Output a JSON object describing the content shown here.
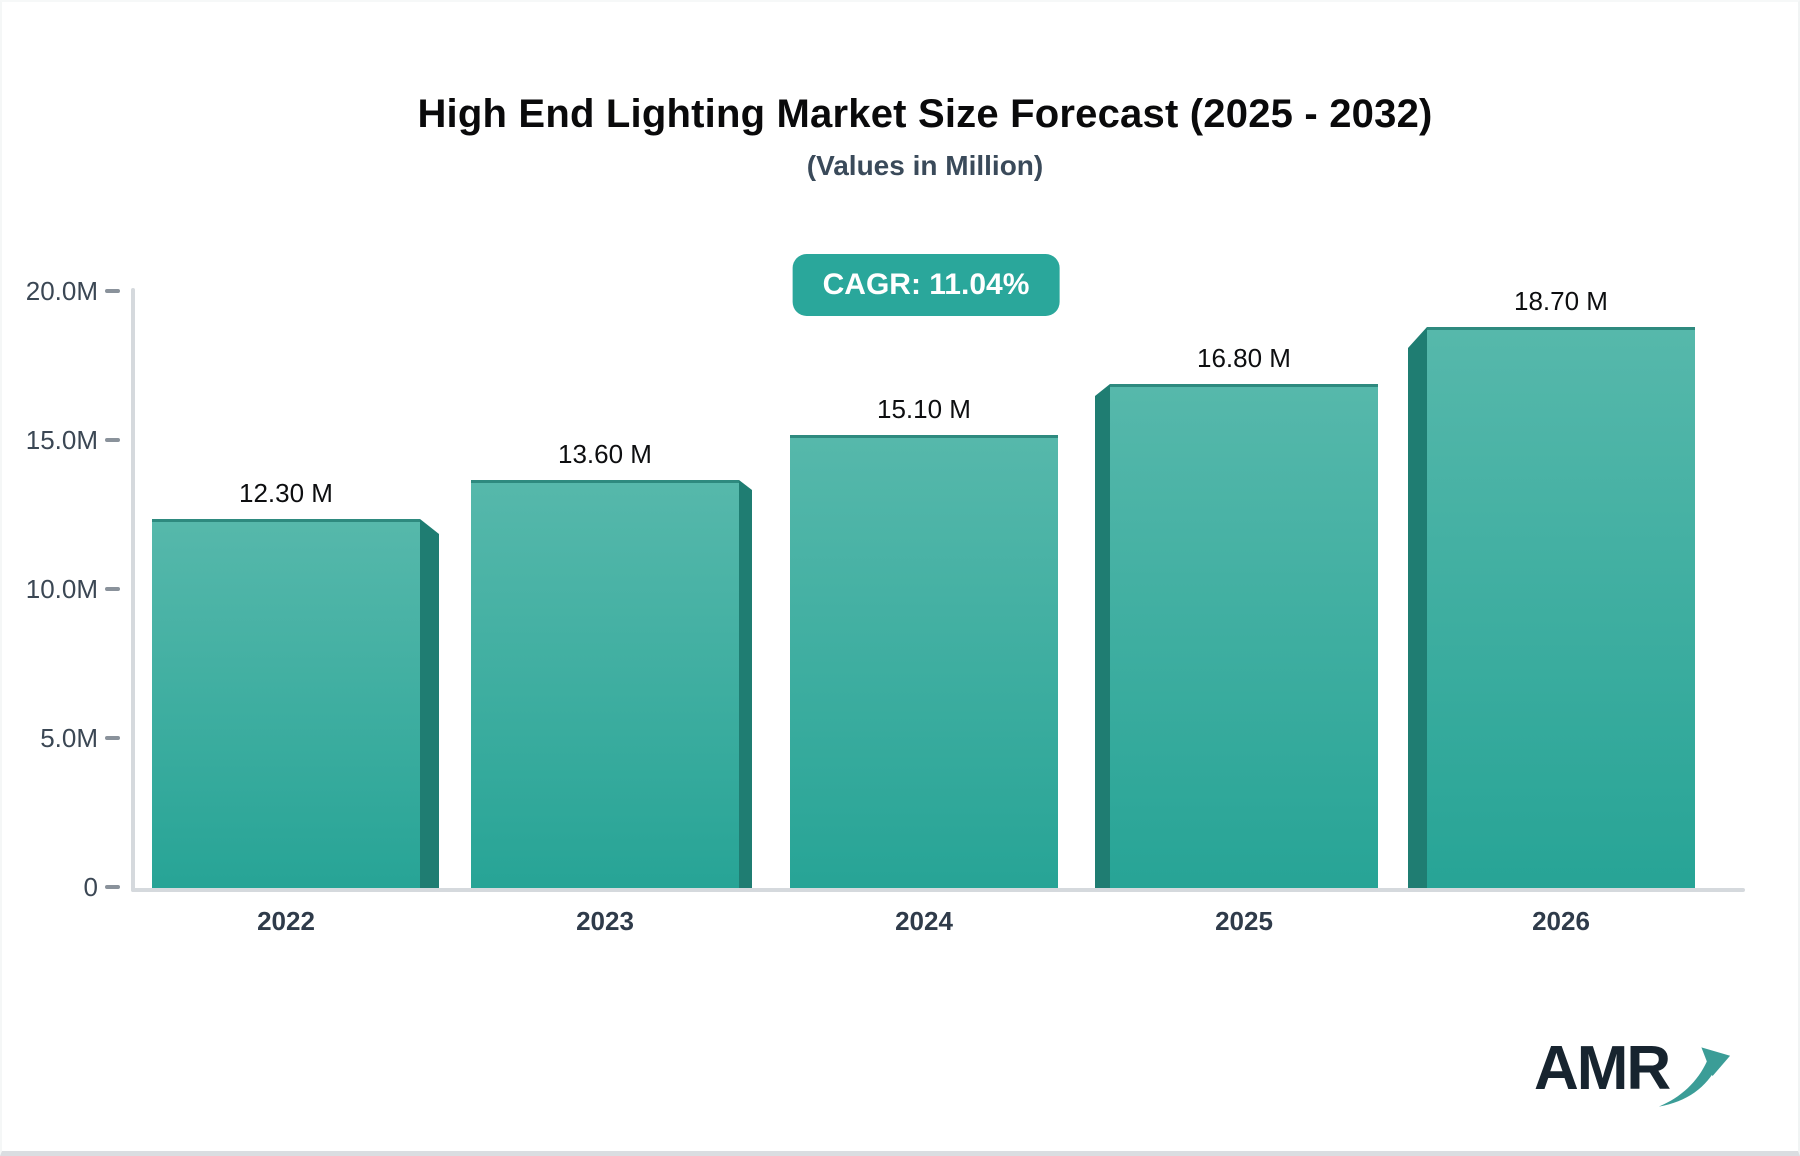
{
  "page": {
    "title": "High End Lighting Market Size Forecast (2025 - 2032)",
    "subtitle": "(Values in Million)",
    "cagr_badge": "CAGR: 11.04%"
  },
  "logo": {
    "text": "AMR",
    "arrow_icon": "growth-arrow-icon"
  },
  "chart_data": {
    "type": "bar",
    "title": "High End Lighting Market Size Forecast (2025 - 2032)",
    "subtitle": "(Values in Million)",
    "annotation": "CAGR: 11.04%",
    "categories": [
      "2022",
      "2023",
      "2024",
      "2025",
      "2026"
    ],
    "values": [
      12.3,
      13.6,
      15.1,
      16.8,
      18.7
    ],
    "value_labels": [
      "12.30 M",
      "13.60 M",
      "15.10 M",
      "16.80 M",
      "18.70 M"
    ],
    "unit": "Million",
    "y_ticks": [
      "0",
      "5.0M",
      "10.0M",
      "15.0M",
      "20.0M"
    ],
    "ylim": [
      0,
      20
    ],
    "grid": "off",
    "legend": "none",
    "bar_style": "3d-extruded-teal",
    "colors": {
      "bar_top": "#56B8AB",
      "bar_bottom": "#27A496",
      "bar_edge": "#2E8A7F",
      "bar_side": "#1F7D72",
      "badge_bg": "#2AA79B",
      "axis_line": "#D5D9DD",
      "tick_mark": "#8A929B",
      "tick_label": "#3B4754",
      "x_label": "#2F3B4A",
      "value_label": "#0D0E10",
      "title": "#0A0A0B",
      "subtitle": "#3A4A5A",
      "logo_text": "#17242F",
      "logo_arrow": "#3B9D97"
    }
  }
}
